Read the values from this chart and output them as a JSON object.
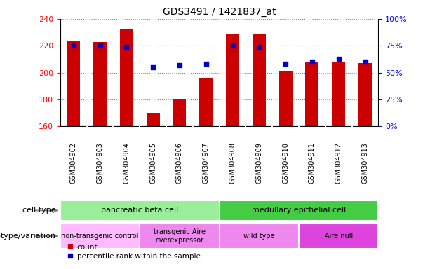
{
  "title": "GDS3491 / 1421837_at",
  "samples": [
    "GSM304902",
    "GSM304903",
    "GSM304904",
    "GSM304905",
    "GSM304906",
    "GSM304907",
    "GSM304908",
    "GSM304909",
    "GSM304910",
    "GSM304911",
    "GSM304912",
    "GSM304913"
  ],
  "counts": [
    224,
    223,
    232,
    170,
    180,
    196,
    229,
    229,
    201,
    208,
    208,
    207
  ],
  "percentile_ranks": [
    75,
    75,
    74,
    55,
    57,
    58,
    75,
    74,
    58,
    60,
    63,
    60
  ],
  "ylim_left": [
    160,
    240
  ],
  "ylim_right": [
    0,
    100
  ],
  "yticks_left": [
    160,
    180,
    200,
    220,
    240
  ],
  "yticks_right": [
    0,
    25,
    50,
    75,
    100
  ],
  "ytick_labels_right": [
    "0%",
    "25%",
    "50%",
    "75%",
    "100%"
  ],
  "bar_color": "#cc0000",
  "dot_color": "#0000cc",
  "bar_bottom": 160,
  "cell_types": [
    {
      "label": "pancreatic beta cell",
      "start": 0,
      "end": 6,
      "color": "#99ee99"
    },
    {
      "label": "medullary epithelial cell",
      "start": 6,
      "end": 12,
      "color": "#44cc44"
    }
  ],
  "genotypes": [
    {
      "label": "non-transgenic control",
      "start": 0,
      "end": 3,
      "color": "#ffbbff"
    },
    {
      "label": "transgenic Aire\noverexpressor",
      "start": 3,
      "end": 6,
      "color": "#ee99ee"
    },
    {
      "label": "wild type",
      "start": 6,
      "end": 9,
      "color": "#ee99ee"
    },
    {
      "label": "Aire null",
      "start": 9,
      "end": 12,
      "color": "#dd55dd"
    }
  ],
  "row_labels": [
    "cell type",
    "genotype/variation"
  ],
  "legend_count_label": "count",
  "legend_pct_label": "percentile rank within the sample",
  "bg_color": "#ffffff",
  "grid_color": "#888888",
  "xtick_bg": "#cccccc"
}
